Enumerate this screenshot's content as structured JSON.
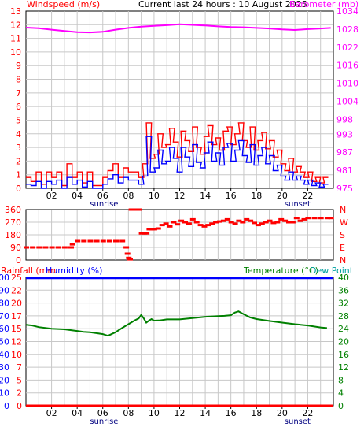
{
  "header": {
    "title": "Current last 24 hours : 10 August 2025",
    "wind_label": "Windspeed (m/s)",
    "baro_label": "Barometer (mb)"
  },
  "middle": {
    "dir_labels": [
      "N",
      "W",
      "S",
      "E",
      "N"
    ]
  },
  "bottom": {
    "rain_label": "Rainfall (mm",
    "hum_label": "Humidity (%)",
    "temp_label": "Temperature (°C)",
    "dew_label": "Dew Point"
  },
  "colors": {
    "wind_speed": "#ff0000",
    "wind_avg": "#0000ff",
    "barometer": "#ff00ff",
    "direction": "#ff0000",
    "humidity": "#0000ff",
    "temperature": "#008000",
    "rainfall": "#ff0000"
  },
  "chart_data": [
    {
      "type": "line",
      "id": "wind",
      "x_ticks": [
        "02",
        "04",
        "06",
        "08",
        "10",
        "12",
        "14",
        "16",
        "18",
        "20",
        "22"
      ],
      "sun_labels": {
        "sunrise": "sunrise",
        "sunset": "sunset"
      },
      "y_left_ticks": [
        0,
        1,
        2,
        3,
        4,
        5,
        6,
        7,
        8,
        9,
        10,
        11,
        12,
        13
      ],
      "y_right_ticks": [
        975,
        981,
        987,
        993,
        998,
        1004,
        1010,
        1016,
        1022,
        1028,
        1034
      ],
      "ylim": [
        0,
        13
      ],
      "y2lim": [
        975,
        1034
      ],
      "xlim": [
        0,
        24
      ],
      "series": [
        {
          "key": "gust",
          "x": [
            0.2,
            0.6,
            1.0,
            1.4,
            1.8,
            2.2,
            2.6,
            3.0,
            3.4,
            3.8,
            4.2,
            4.6,
            5.0,
            5.4,
            5.8,
            6.2,
            6.6,
            7.0,
            7.4,
            7.8,
            8.2,
            8.6,
            9.0,
            9.3,
            9.6,
            9.9,
            10.2,
            10.5,
            10.8,
            11.1,
            11.4,
            11.7,
            12.0,
            12.3,
            12.6,
            12.9,
            13.2,
            13.5,
            13.8,
            14.1,
            14.4,
            14.7,
            15.0,
            15.3,
            15.6,
            15.9,
            16.2,
            16.5,
            16.8,
            17.1,
            17.4,
            17.7,
            18.0,
            18.3,
            18.6,
            18.9,
            19.2,
            19.5,
            19.8,
            20.1,
            20.4,
            20.7,
            21.0,
            21.3,
            21.6,
            21.9,
            22.2,
            22.5,
            22.8,
            23.1,
            23.4
          ],
          "values": [
            0.8,
            0.5,
            1.2,
            0.3,
            1.2,
            0.8,
            1.2,
            0.2,
            1.8,
            0.8,
            1.2,
            0.4,
            1.2,
            0.2,
            0.2,
            0.8,
            1.3,
            1.8,
            0.8,
            1.5,
            1.2,
            1.2,
            0.8,
            1.8,
            4.8,
            2.2,
            2.5,
            4.0,
            3.0,
            3.2,
            4.4,
            3.4,
            2.3,
            4.2,
            3.5,
            2.7,
            4.5,
            3.0,
            2.5,
            3.8,
            4.6,
            3.2,
            3.7,
            2.8,
            4.2,
            4.5,
            3.2,
            4.0,
            4.8,
            3.5,
            3.0,
            4.5,
            2.8,
            3.5,
            4.1,
            2.9,
            3.5,
            2.3,
            2.8,
            1.8,
            1.3,
            2.2,
            1.2,
            1.6,
            1.2,
            0.8,
            1.2,
            0.5,
            0.8,
            0.4,
            0.8
          ]
        },
        {
          "key": "average",
          "x": [
            0.2,
            0.6,
            1.0,
            1.4,
            1.8,
            2.2,
            2.6,
            3.0,
            3.4,
            3.8,
            4.2,
            4.6,
            5.0,
            5.4,
            5.8,
            6.2,
            6.6,
            7.0,
            7.4,
            7.8,
            8.2,
            8.6,
            9.0,
            9.3,
            9.6,
            9.9,
            10.2,
            10.5,
            10.8,
            11.1,
            11.4,
            11.7,
            12.0,
            12.3,
            12.6,
            12.9,
            13.2,
            13.5,
            13.8,
            14.1,
            14.4,
            14.7,
            15.0,
            15.3,
            15.6,
            15.9,
            16.2,
            16.5,
            16.8,
            17.1,
            17.4,
            17.7,
            18.0,
            18.3,
            18.6,
            18.9,
            19.2,
            19.5,
            19.8,
            20.1,
            20.4,
            20.7,
            21.0,
            21.3,
            21.6,
            21.9,
            22.2,
            22.5,
            22.8,
            23.1,
            23.4
          ],
          "values": [
            0.3,
            0.2,
            0.5,
            0.0,
            0.5,
            0.3,
            0.6,
            0.0,
            0.8,
            0.3,
            0.6,
            0.1,
            0.5,
            0.0,
            0.0,
            0.3,
            0.7,
            1.0,
            0.4,
            0.8,
            0.6,
            0.6,
            0.3,
            0.9,
            3.8,
            1.2,
            1.5,
            2.8,
            1.8,
            2.0,
            3.0,
            2.2,
            1.2,
            3.0,
            2.3,
            1.6,
            3.2,
            1.9,
            1.5,
            2.6,
            3.4,
            2.0,
            2.6,
            1.7,
            3.0,
            3.3,
            2.0,
            2.8,
            3.5,
            2.4,
            1.9,
            3.2,
            1.7,
            2.4,
            3.0,
            1.8,
            2.4,
            1.3,
            1.7,
            0.9,
            0.6,
            1.2,
            0.6,
            0.9,
            0.6,
            0.3,
            0.6,
            0.2,
            0.4,
            0.1,
            0.3
          ]
        },
        {
          "key": "barometer",
          "axis": "right",
          "x": [
            0.0,
            1.0,
            2.0,
            3.0,
            4.0,
            5.0,
            6.0,
            7.0,
            8.0,
            9.0,
            10.0,
            11.0,
            12.0,
            13.0,
            14.0,
            15.0,
            16.0,
            17.0,
            18.0,
            19.0,
            20.0,
            21.0,
            22.0,
            23.0,
            23.8
          ],
          "values": [
            1028.5,
            1028.3,
            1027.8,
            1027.4,
            1027.0,
            1026.9,
            1027.1,
            1027.8,
            1028.4,
            1028.8,
            1029.1,
            1029.3,
            1029.6,
            1029.4,
            1029.2,
            1028.9,
            1028.7,
            1028.6,
            1028.4,
            1028.2,
            1027.9,
            1027.7,
            1028.0,
            1028.2,
            1028.4
          ]
        }
      ]
    },
    {
      "type": "scatter",
      "id": "direction",
      "y_ticks": [
        0,
        90,
        180,
        270,
        360
      ],
      "ylim": [
        0,
        360
      ],
      "xlim": [
        0,
        24
      ],
      "series": [
        {
          "key": "direction",
          "x": [
            0.0,
            0.5,
            1.0,
            1.5,
            2.0,
            2.5,
            3.0,
            3.5,
            3.6,
            4.0,
            4.5,
            5.0,
            5.5,
            6.0,
            6.5,
            7.0,
            7.5,
            7.8,
            7.9,
            8.0,
            8.1,
            8.2,
            8.4,
            8.6,
            8.8,
            9.0,
            9.2,
            9.4,
            9.6,
            9.8,
            10.0,
            10.3,
            10.6,
            10.9,
            11.2,
            11.5,
            11.8,
            12.1,
            12.4,
            12.7,
            13.0,
            13.3,
            13.6,
            13.9,
            14.2,
            14.5,
            14.8,
            15.1,
            15.4,
            15.7,
            16.0,
            16.3,
            16.6,
            16.9,
            17.2,
            17.5,
            17.8,
            18.1,
            18.4,
            18.7,
            19.0,
            19.3,
            19.6,
            19.9,
            20.2,
            20.5,
            20.8,
            21.1,
            21.4,
            21.7,
            22.0,
            22.5,
            23.0,
            23.5,
            23.8
          ],
          "values": [
            90,
            90,
            90,
            90,
            90,
            90,
            90,
            90,
            112,
            135,
            135,
            135,
            135,
            135,
            135,
            135,
            135,
            90,
            45,
            15,
            5,
            360,
            360,
            360,
            360,
            190,
            190,
            190,
            220,
            220,
            220,
            225,
            250,
            260,
            240,
            270,
            255,
            280,
            270,
            260,
            290,
            270,
            250,
            240,
            250,
            260,
            270,
            275,
            280,
            290,
            270,
            260,
            280,
            270,
            290,
            280,
            265,
            250,
            260,
            270,
            280,
            265,
            270,
            290,
            280,
            270,
            270,
            300,
            280,
            290,
            300,
            300,
            300,
            300,
            300
          ]
        }
      ]
    },
    {
      "type": "line",
      "id": "temp",
      "y_left_ticks": [
        0,
        10,
        20,
        30,
        40,
        50,
        60,
        70,
        80,
        90,
        100
      ],
      "y_left_inner_ticks": [
        0,
        2,
        5,
        7,
        10,
        12,
        15,
        17,
        20,
        22,
        25
      ],
      "y_right_ticks": [
        0,
        4,
        8,
        12,
        16,
        20,
        24,
        28,
        32,
        36,
        40
      ],
      "ylim": [
        0,
        100
      ],
      "y2lim": [
        0,
        40
      ],
      "xlim": [
        0,
        24
      ],
      "series": [
        {
          "key": "humidity",
          "x": [
            0.0,
            24.0
          ],
          "values": [
            99.5,
            99.5
          ]
        },
        {
          "key": "rainfall",
          "x": [
            0.0,
            24.0
          ],
          "values": [
            0.0,
            0.0
          ]
        },
        {
          "key": "temperature",
          "axis": "right",
          "x": [
            0.0,
            0.5,
            1.0,
            2.0,
            3.0,
            4.0,
            4.5,
            5.0,
            5.5,
            6.0,
            6.4,
            7.0,
            7.5,
            8.0,
            8.5,
            8.8,
            9.0,
            9.2,
            9.4,
            9.6,
            9.8,
            10.0,
            10.5,
            11.0,
            12.0,
            13.0,
            14.0,
            15.0,
            15.5,
            16.0,
            16.3,
            16.6,
            17.0,
            17.5,
            18.0,
            19.0,
            20.0,
            21.0,
            22.0,
            23.0,
            23.5
          ],
          "values": [
            25.2,
            25.0,
            24.5,
            24.0,
            23.8,
            23.3,
            23.0,
            22.9,
            22.6,
            22.3,
            21.8,
            22.9,
            24.2,
            25.4,
            26.6,
            27.2,
            28.3,
            27.2,
            25.9,
            26.5,
            27.0,
            26.5,
            26.6,
            26.9,
            26.9,
            27.3,
            27.7,
            27.9,
            28.0,
            28.2,
            29.0,
            29.4,
            28.5,
            27.5,
            27.0,
            26.4,
            25.9,
            25.4,
            25.0,
            24.4,
            24.2
          ]
        }
      ]
    }
  ]
}
